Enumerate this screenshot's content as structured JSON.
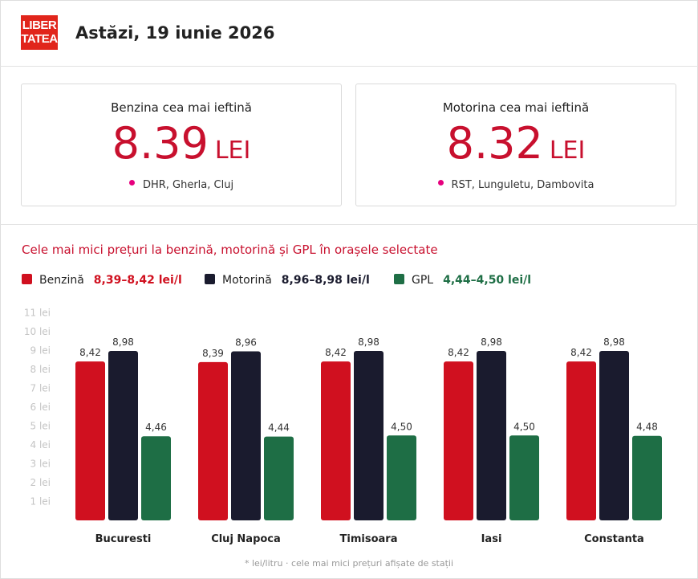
{
  "header": {
    "logo_line1": "LIBER",
    "logo_line2": "TATEA",
    "title": "Astăzi, 19 iunie 2026"
  },
  "cards": [
    {
      "title": "Benzina cea mai ieftină",
      "price": "8.39",
      "unit": "LEI",
      "location": "DHR, Gherla, Cluj"
    },
    {
      "title": "Motorina cea mai ieftină",
      "price": "8.32",
      "unit": "LEI",
      "location": "RST, Lunguletu, Dambovita"
    }
  ],
  "chart_data": {
    "type": "bar",
    "title": "Cele mai mici prețuri la benzină, motorină și GPL în orașele selectate",
    "categories": [
      "Bucuresti",
      "Cluj Napoca",
      "Timisoara",
      "Iasi",
      "Constanta"
    ],
    "series": [
      {
        "name": "Benzină",
        "range": "8,39–8,42 lei/l",
        "color": "#d0101f",
        "values": [
          8.42,
          8.39,
          8.42,
          8.42,
          8.42
        ],
        "labels": [
          "8,42",
          "8,39",
          "8,42",
          "8,42",
          "8,42"
        ]
      },
      {
        "name": "Motorină",
        "range": "8,96–8,98 lei/l",
        "color": "#1a1b2e",
        "values": [
          8.98,
          8.96,
          8.98,
          8.98,
          8.98
        ],
        "labels": [
          "8,98",
          "8,96",
          "8,98",
          "8,98",
          "8,98"
        ]
      },
      {
        "name": "GPL",
        "range": "4,44–4,50 lei/l",
        "color": "#1e6e45",
        "values": [
          4.46,
          4.44,
          4.5,
          4.5,
          4.48
        ],
        "labels": [
          "4,46",
          "4,44",
          "4,50",
          "4,50",
          "4,48"
        ]
      }
    ],
    "y_ticks": [
      "1 lei",
      "2 lei",
      "3 lei",
      "4 lei",
      "5 lei",
      "6 lei",
      "7 lei",
      "8 lei",
      "9 lei",
      "10 lei",
      "11 lei"
    ],
    "ylim": [
      0,
      11
    ],
    "legend_position": "top-left",
    "grid": false
  },
  "footnote": "* lei/litru · cele mai mici prețuri afișate de stații"
}
